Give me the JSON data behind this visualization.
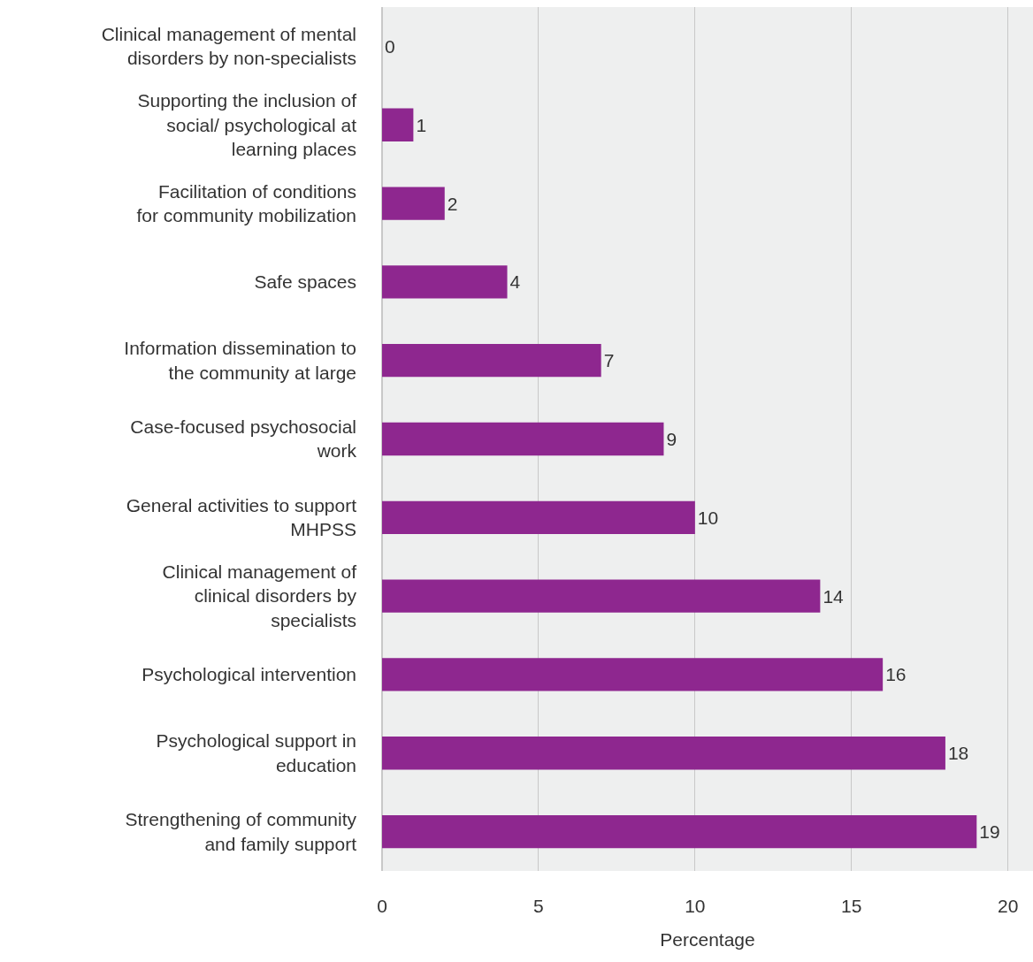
{
  "chart_data": {
    "type": "bar",
    "orientation": "horizontal",
    "xlabel": "Percentage",
    "categories": [
      "Clinical management of mental disorders by non-specialists",
      "Supporting the inclusion of social/ psychological at learning places",
      "Facilitation of conditions for community mobilization",
      "Safe spaces",
      "Information dissemination to the community at large",
      "Case-focused psychosocial work",
      "General activities to support MHPSS",
      "Clinical management of clinical disorders by specialists",
      "Psychological intervention",
      "Psychological support in education",
      "Strengthening of community and family support"
    ],
    "values": [
      0,
      1,
      2,
      4,
      7,
      9,
      10,
      14,
      16,
      18,
      19
    ],
    "color": "#8e278f",
    "xlim": [
      0,
      20.8
    ],
    "xticks": [
      0,
      5,
      10,
      15,
      20
    ],
    "grid": "x",
    "data_labels": true,
    "legend": false
  }
}
